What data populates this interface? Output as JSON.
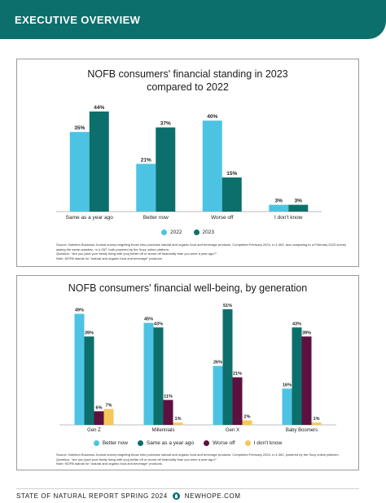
{
  "header": {
    "title": "EXECUTIVE OVERVIEW"
  },
  "footer": {
    "report": "STATE OF NATURAL REPORT SPRING 2024",
    "site": "NEWHOPE.COM"
  },
  "colors": {
    "brand": "#0d6f6c",
    "light_blue": "#4dc3e3",
    "teal": "#0d6f6c",
    "plum": "#5e1040",
    "yellow": "#f6c75b"
  },
  "chart1": {
    "title_line1": "NOFB consumers' financial standing in 2023",
    "title_line2": "compared to 2022",
    "notes": {
      "source": "Source: Nutrition Business Journal survey targeting those who purchase natural and organic food and beverage products. Completed February 2024, n=1,062, and comparing to a February 2023 survey asking the same question, n=1,057, both powered by the Suzy online platform.",
      "question": "Question: \"Are you [and your family living with you] better off or worse off financially than you were a year ago?\"",
      "note": "Note: NOFB stands for \"natural and organic food and beverage\" products."
    }
  },
  "chart2": {
    "title": "NOFB consumers' financial well-being, by generation",
    "notes": {
      "source": "Source: Nutrition Business Journal survey targeting those who purchase natural and organic food and beverage products. Completed February 2024, n=1,062, powered by the Suzy online platform.",
      "question": "Question: \"Are you [and your family living with you] better off or worse off financially than you were a year ago?\"",
      "note": "Note: NOFB stands for \"natural and organic food and beverage\" products."
    }
  },
  "chart_data": [
    {
      "type": "bar",
      "title": "NOFB consumers' financial standing in 2023 compared to 2022",
      "categories": [
        "Same as a year ago",
        "Better now",
        "Worse off",
        "I don't know"
      ],
      "series": [
        {
          "name": "2022",
          "color": "#4dc3e3",
          "values": [
            35,
            21,
            40,
            3
          ]
        },
        {
          "name": "2023",
          "color": "#0d6f6c",
          "values": [
            44,
            37,
            15,
            3
          ]
        }
      ],
      "value_suffix": "%",
      "ylim": [
        0,
        44
      ],
      "legend": "bottom"
    },
    {
      "type": "bar",
      "title": "NOFB consumers' financial well-being, by generation",
      "categories": [
        "Gen Z",
        "Millennials",
        "Gen X",
        "Baby Boomers"
      ],
      "series": [
        {
          "name": "Better now",
          "color": "#4dc3e3",
          "values": [
            49,
            45,
            26,
            16
          ]
        },
        {
          "name": "Same as a year ago",
          "color": "#0d6f6c",
          "values": [
            39,
            43,
            51,
            43
          ]
        },
        {
          "name": "Worse off",
          "color": "#5e1040",
          "values": [
            6,
            11,
            21,
            39
          ]
        },
        {
          "name": "I don't know",
          "color": "#f6c75b",
          "values": [
            7,
            1,
            2,
            1
          ]
        }
      ],
      "value_suffix": "%",
      "ylim": [
        0,
        51
      ],
      "legend": "bottom"
    }
  ]
}
